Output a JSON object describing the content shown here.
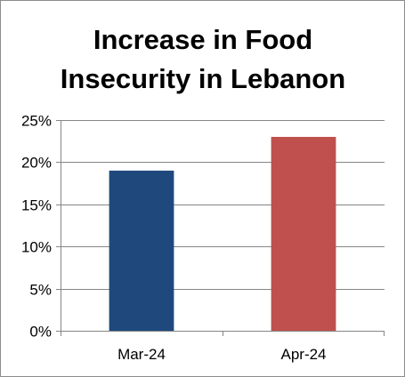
{
  "chart_data": {
    "type": "bar",
    "title_lines": [
      "Increase in Food",
      "Insecurity in Lebanon"
    ],
    "categories": [
      "Mar-24",
      "Apr-24"
    ],
    "values": [
      0.19,
      0.23
    ],
    "bar_colors": [
      "#1f497d",
      "#c0504d"
    ],
    "ylim": [
      0,
      0.25
    ],
    "y_ticks": [
      0,
      0.05,
      0.1,
      0.15,
      0.2,
      0.25
    ],
    "y_tick_labels": [
      "0%",
      "5%",
      "10%",
      "15%",
      "20%",
      "25%"
    ],
    "grid": true,
    "legend": false,
    "xlabel": "",
    "ylabel": ""
  }
}
